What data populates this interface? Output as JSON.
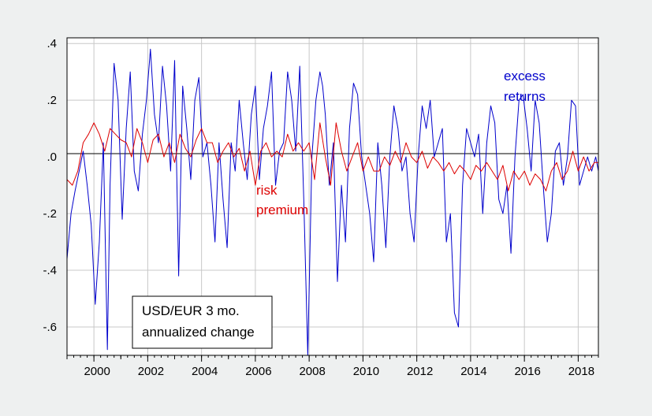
{
  "chart_data": {
    "type": "line",
    "ylim": [
      -0.7,
      0.42
    ],
    "xlim": [
      1999.0,
      2018.75
    ],
    "grid": true,
    "x_ticks": [
      2000,
      2002,
      2004,
      2006,
      2008,
      2010,
      2012,
      2014,
      2016,
      2018
    ],
    "x_tick_labels": [
      "2000",
      "2002",
      "2004",
      "2006",
      "2008",
      "2010",
      "2012",
      "2014",
      "2016",
      "2018"
    ],
    "y_ticks": [
      0.4,
      0.2,
      0.0,
      -0.2,
      -0.4,
      -0.6
    ],
    "y_tick_labels": [
      ".4",
      ".2",
      ".0",
      "-.2",
      "-.4",
      "-.6"
    ],
    "annotation_box": [
      "USD/EUR 3 mo.",
      "annualized change"
    ],
    "colors": {
      "excess_returns": "#0000cc",
      "risk_premium": "#dd0000",
      "background": "#eef0f0",
      "plot_bg": "#ffffff",
      "grid": "#c8c8c8"
    },
    "series": [
      {
        "name": "excess returns",
        "label_lines": [
          "excess",
          "returns"
        ],
        "x": [
          1999.0,
          1999.15,
          1999.3,
          1999.45,
          1999.6,
          1999.75,
          1999.9,
          2000.05,
          2000.2,
          2000.35,
          2000.5,
          2000.6,
          2000.75,
          2000.9,
          2001.05,
          2001.2,
          2001.35,
          2001.5,
          2001.65,
          2001.8,
          2001.95,
          2002.1,
          2002.25,
          2002.4,
          2002.55,
          2002.7,
          2002.85,
          2003.0,
          2003.15,
          2003.3,
          2003.45,
          2003.6,
          2003.75,
          2003.9,
          2004.05,
          2004.2,
          2004.35,
          2004.5,
          2004.65,
          2004.8,
          2004.95,
          2005.1,
          2005.25,
          2005.4,
          2005.55,
          2005.7,
          2005.85,
          2006.0,
          2006.15,
          2006.3,
          2006.45,
          2006.6,
          2006.75,
          2006.9,
          2007.05,
          2007.2,
          2007.35,
          2007.5,
          2007.65,
          2007.8,
          2007.95,
          2008.1,
          2008.25,
          2008.4,
          2008.5,
          2008.6,
          2008.75,
          2008.9,
          2009.05,
          2009.2,
          2009.35,
          2009.5,
          2009.65,
          2009.8,
          2009.95,
          2010.1,
          2010.25,
          2010.4,
          2010.55,
          2010.7,
          2010.85,
          2011.0,
          2011.15,
          2011.3,
          2011.45,
          2011.6,
          2011.75,
          2011.9,
          2012.05,
          2012.2,
          2012.35,
          2012.5,
          2012.65,
          2012.8,
          2012.95,
          2013.1,
          2013.25,
          2013.4,
          2013.55,
          2013.7,
          2013.85,
          2014.0,
          2014.15,
          2014.3,
          2014.45,
          2014.6,
          2014.75,
          2014.9,
          2015.05,
          2015.2,
          2015.35,
          2015.5,
          2015.65,
          2015.8,
          2015.95,
          2016.1,
          2016.25,
          2016.4,
          2016.55,
          2016.7,
          2016.85,
          2017.0,
          2017.15,
          2017.3,
          2017.45,
          2017.6,
          2017.75,
          2017.9,
          2018.05,
          2018.2,
          2018.35,
          2018.5,
          2018.65,
          2018.75
        ],
        "values": [
          -0.36,
          -0.2,
          -0.12,
          -0.05,
          0.02,
          -0.1,
          -0.24,
          -0.52,
          -0.3,
          0.05,
          -0.68,
          -0.1,
          0.33,
          0.2,
          -0.22,
          0.1,
          0.3,
          -0.05,
          -0.12,
          0.08,
          0.2,
          0.38,
          0.15,
          0.05,
          0.32,
          0.18,
          -0.05,
          0.34,
          -0.42,
          0.25,
          0.1,
          -0.08,
          0.2,
          0.28,
          0.0,
          0.05,
          -0.1,
          -0.3,
          0.05,
          -0.15,
          -0.32,
          0.05,
          -0.05,
          0.2,
          0.05,
          -0.08,
          0.15,
          0.25,
          -0.08,
          0.1,
          0.18,
          0.3,
          -0.1,
          0.02,
          0.05,
          0.3,
          0.2,
          0.02,
          0.32,
          -0.15,
          -0.7,
          0.0,
          0.2,
          0.3,
          0.25,
          0.15,
          -0.1,
          0.05,
          -0.44,
          -0.1,
          -0.3,
          0.1,
          0.26,
          0.22,
          0.0,
          -0.1,
          -0.2,
          -0.37,
          0.05,
          -0.1,
          -0.32,
          0.0,
          0.18,
          0.1,
          -0.05,
          0.0,
          -0.2,
          -0.3,
          0.0,
          0.18,
          0.1,
          0.2,
          0.0,
          0.05,
          0.1,
          -0.3,
          -0.2,
          -0.55,
          -0.6,
          -0.1,
          0.1,
          0.05,
          0.0,
          0.08,
          -0.2,
          0.05,
          0.18,
          0.12,
          -0.15,
          -0.2,
          -0.1,
          -0.34,
          0.0,
          0.2,
          0.22,
          0.1,
          -0.05,
          0.2,
          0.12,
          -0.1,
          -0.3,
          -0.2,
          0.02,
          0.05,
          -0.1,
          0.0,
          0.2,
          0.18,
          -0.1,
          -0.05,
          0.0,
          -0.05,
          0.0,
          -0.05
        ]
      },
      {
        "name": "risk premium",
        "label_lines": [
          "risk",
          "premium"
        ],
        "x": [
          1999.0,
          1999.2,
          1999.4,
          1999.6,
          1999.8,
          2000.0,
          2000.2,
          2000.4,
          2000.6,
          2000.8,
          2001.0,
          2001.2,
          2001.4,
          2001.6,
          2001.8,
          2002.0,
          2002.2,
          2002.4,
          2002.6,
          2002.8,
          2003.0,
          2003.2,
          2003.4,
          2003.6,
          2003.8,
          2004.0,
          2004.2,
          2004.4,
          2004.6,
          2004.8,
          2005.0,
          2005.2,
          2005.4,
          2005.6,
          2005.8,
          2006.0,
          2006.2,
          2006.4,
          2006.6,
          2006.8,
          2007.0,
          2007.2,
          2007.4,
          2007.6,
          2007.8,
          2008.0,
          2008.2,
          2008.4,
          2008.6,
          2008.8,
          2009.0,
          2009.2,
          2009.4,
          2009.6,
          2009.8,
          2010.0,
          2010.2,
          2010.4,
          2010.6,
          2010.8,
          2011.0,
          2011.2,
          2011.4,
          2011.6,
          2011.8,
          2012.0,
          2012.2,
          2012.4,
          2012.6,
          2012.8,
          2013.0,
          2013.2,
          2013.4,
          2013.6,
          2013.8,
          2014.0,
          2014.2,
          2014.4,
          2014.6,
          2014.8,
          2015.0,
          2015.2,
          2015.4,
          2015.6,
          2015.8,
          2016.0,
          2016.2,
          2016.4,
          2016.6,
          2016.8,
          2017.0,
          2017.2,
          2017.4,
          2017.6,
          2017.8,
          2018.0,
          2018.2,
          2018.4,
          2018.6,
          2018.75
        ],
        "values": [
          -0.08,
          -0.1,
          -0.05,
          0.05,
          0.08,
          0.12,
          0.08,
          0.02,
          0.1,
          0.08,
          0.06,
          0.05,
          0.0,
          0.1,
          0.05,
          -0.02,
          0.06,
          0.08,
          0.0,
          0.05,
          -0.02,
          0.08,
          0.03,
          0.0,
          0.06,
          0.1,
          0.05,
          0.05,
          -0.02,
          0.02,
          0.05,
          0.0,
          0.03,
          -0.05,
          0.02,
          -0.1,
          0.02,
          0.05,
          0.0,
          0.02,
          0.0,
          0.08,
          0.02,
          0.05,
          0.02,
          0.05,
          -0.08,
          0.12,
          0.0,
          -0.1,
          0.12,
          0.02,
          -0.05,
          0.0,
          0.05,
          -0.05,
          0.0,
          -0.05,
          -0.05,
          0.0,
          -0.03,
          0.02,
          -0.02,
          0.05,
          0.0,
          -0.02,
          0.02,
          -0.04,
          0.0,
          -0.02,
          -0.05,
          -0.02,
          -0.06,
          -0.03,
          -0.05,
          -0.08,
          -0.03,
          -0.05,
          -0.02,
          -0.05,
          -0.08,
          -0.03,
          -0.12,
          -0.05,
          -0.08,
          -0.05,
          -0.1,
          -0.06,
          -0.08,
          -0.12,
          -0.05,
          -0.02,
          -0.08,
          -0.05,
          0.02,
          -0.05,
          0.0,
          -0.05,
          -0.02,
          -0.02
        ]
      }
    ]
  }
}
